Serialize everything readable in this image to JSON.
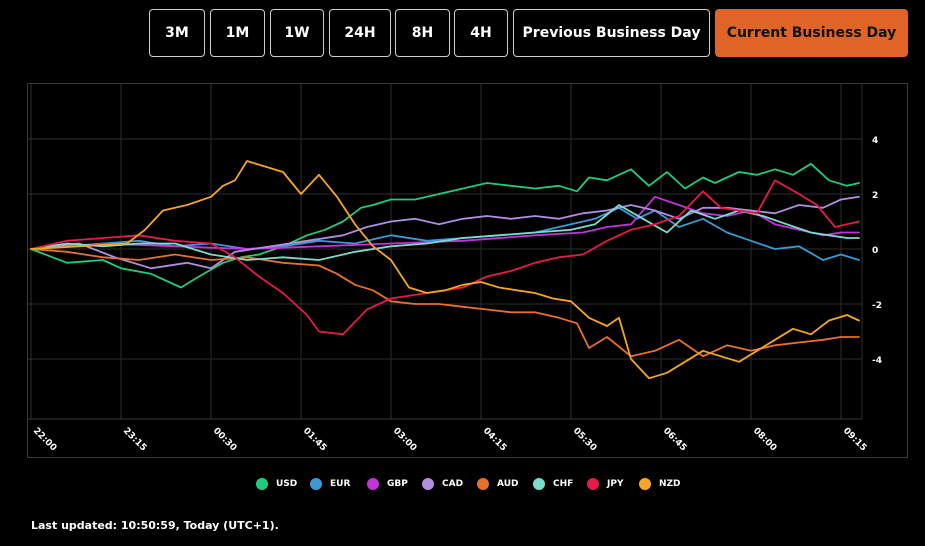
{
  "toolbar": {
    "buttons": [
      {
        "label": "3M",
        "active": false
      },
      {
        "label": "1M",
        "active": false
      },
      {
        "label": "1W",
        "active": false
      },
      {
        "label": "24H",
        "active": false
      },
      {
        "label": "8H",
        "active": false
      },
      {
        "label": "4H",
        "active": false
      },
      {
        "label": "Previous Business Day",
        "active": false
      },
      {
        "label": "Current Business Day",
        "active": true
      }
    ]
  },
  "footer": {
    "text": "Last updated: 10:50:59, Today (UTC+1)."
  },
  "chart_data": {
    "type": "line",
    "title": "",
    "xlabel": "",
    "ylabel": "",
    "ylim": [
      -6,
      6
    ],
    "grid": true,
    "legend": "bottom",
    "yticks": [
      4,
      2,
      0,
      -2,
      -4
    ],
    "x_tick_labels": [
      "22:00",
      "23:15",
      "00:30",
      "01:45",
      "03:00",
      "04:15",
      "05:30",
      "06:45",
      "08:00",
      "09:15"
    ],
    "x_unit": "minutes since 22:00",
    "series": [
      {
        "name": "USD",
        "color": "#1fcc7e",
        "points": [
          [
            0,
            0
          ],
          [
            30,
            -0.5
          ],
          [
            60,
            -0.4
          ],
          [
            75,
            -0.7
          ],
          [
            100,
            -0.9
          ],
          [
            125,
            -1.4
          ],
          [
            140,
            -1.0
          ],
          [
            160,
            -0.5
          ],
          [
            175,
            -0.3
          ],
          [
            190,
            -0.2
          ],
          [
            210,
            0.1
          ],
          [
            230,
            0.5
          ],
          [
            245,
            0.7
          ],
          [
            260,
            1.0
          ],
          [
            275,
            1.5
          ],
          [
            285,
            1.6
          ],
          [
            300,
            1.8
          ],
          [
            320,
            1.8
          ],
          [
            340,
            2.0
          ],
          [
            360,
            2.2
          ],
          [
            380,
            2.4
          ],
          [
            400,
            2.3
          ],
          [
            420,
            2.2
          ],
          [
            440,
            2.3
          ],
          [
            455,
            2.1
          ],
          [
            465,
            2.6
          ],
          [
            480,
            2.5
          ],
          [
            500,
            2.9
          ],
          [
            515,
            2.3
          ],
          [
            530,
            2.8
          ],
          [
            545,
            2.2
          ],
          [
            560,
            2.6
          ],
          [
            570,
            2.4
          ],
          [
            580,
            2.6
          ],
          [
            590,
            2.8
          ],
          [
            605,
            2.7
          ],
          [
            620,
            2.9
          ],
          [
            635,
            2.7
          ],
          [
            650,
            3.1
          ],
          [
            665,
            2.5
          ],
          [
            680,
            2.3
          ],
          [
            690,
            2.4
          ]
        ]
      },
      {
        "name": "EUR",
        "color": "#3b9ad6",
        "points": [
          [
            0,
            0
          ],
          [
            30,
            0.1
          ],
          [
            60,
            0.2
          ],
          [
            90,
            0.3
          ],
          [
            120,
            0.1
          ],
          [
            150,
            0.2
          ],
          [
            180,
            0.0
          ],
          [
            210,
            0.1
          ],
          [
            240,
            0.3
          ],
          [
            270,
            0.2
          ],
          [
            300,
            0.5
          ],
          [
            330,
            0.3
          ],
          [
            360,
            0.4
          ],
          [
            390,
            0.5
          ],
          [
            420,
            0.6
          ],
          [
            450,
            0.9
          ],
          [
            470,
            1.1
          ],
          [
            490,
            1.5
          ],
          [
            505,
            1.1
          ],
          [
            520,
            1.4
          ],
          [
            540,
            0.8
          ],
          [
            560,
            1.1
          ],
          [
            580,
            0.6
          ],
          [
            600,
            0.3
          ],
          [
            620,
            0.0
          ],
          [
            640,
            0.1
          ],
          [
            660,
            -0.4
          ],
          [
            675,
            -0.2
          ],
          [
            690,
            -0.4
          ]
        ]
      },
      {
        "name": "GBP",
        "color": "#c233d9",
        "points": [
          [
            0,
            0
          ],
          [
            60,
            0.2
          ],
          [
            120,
            0.1
          ],
          [
            180,
            0.0
          ],
          [
            240,
            0.1
          ],
          [
            300,
            0.2
          ],
          [
            360,
            0.3
          ],
          [
            420,
            0.5
          ],
          [
            460,
            0.6
          ],
          [
            480,
            0.8
          ],
          [
            500,
            0.9
          ],
          [
            520,
            1.9
          ],
          [
            540,
            1.6
          ],
          [
            560,
            1.3
          ],
          [
            580,
            1.2
          ],
          [
            600,
            1.4
          ],
          [
            620,
            0.9
          ],
          [
            640,
            0.7
          ],
          [
            660,
            0.5
          ],
          [
            675,
            0.6
          ],
          [
            690,
            0.6
          ]
        ]
      },
      {
        "name": "CAD",
        "color": "#b08ee0",
        "points": [
          [
            0,
            0
          ],
          [
            40,
            0.2
          ],
          [
            70,
            -0.3
          ],
          [
            100,
            -0.7
          ],
          [
            130,
            -0.5
          ],
          [
            150,
            -0.7
          ],
          [
            170,
            -0.1
          ],
          [
            200,
            0.1
          ],
          [
            230,
            0.3
          ],
          [
            260,
            0.5
          ],
          [
            280,
            0.8
          ],
          [
            300,
            1.0
          ],
          [
            320,
            1.1
          ],
          [
            340,
            0.9
          ],
          [
            360,
            1.1
          ],
          [
            380,
            1.2
          ],
          [
            400,
            1.1
          ],
          [
            420,
            1.2
          ],
          [
            440,
            1.1
          ],
          [
            460,
            1.3
          ],
          [
            480,
            1.4
          ],
          [
            500,
            1.6
          ],
          [
            520,
            1.4
          ],
          [
            540,
            1.1
          ],
          [
            560,
            1.5
          ],
          [
            580,
            1.5
          ],
          [
            600,
            1.4
          ],
          [
            620,
            1.3
          ],
          [
            640,
            1.6
          ],
          [
            660,
            1.5
          ],
          [
            675,
            1.8
          ],
          [
            690,
            1.9
          ]
        ]
      },
      {
        "name": "AUD",
        "color": "#e8702f",
        "points": [
          [
            0,
            0
          ],
          [
            30,
            -0.1
          ],
          [
            60,
            -0.3
          ],
          [
            90,
            -0.4
          ],
          [
            120,
            -0.2
          ],
          [
            150,
            -0.4
          ],
          [
            180,
            -0.3
          ],
          [
            210,
            -0.5
          ],
          [
            240,
            -0.6
          ],
          [
            255,
            -0.9
          ],
          [
            270,
            -1.3
          ],
          [
            285,
            -1.5
          ],
          [
            300,
            -1.9
          ],
          [
            320,
            -2.0
          ],
          [
            340,
            -2.0
          ],
          [
            360,
            -2.1
          ],
          [
            380,
            -2.2
          ],
          [
            400,
            -2.3
          ],
          [
            420,
            -2.3
          ],
          [
            440,
            -2.5
          ],
          [
            455,
            -2.7
          ],
          [
            465,
            -3.6
          ],
          [
            480,
            -3.2
          ],
          [
            500,
            -3.9
          ],
          [
            520,
            -3.7
          ],
          [
            540,
            -3.3
          ],
          [
            560,
            -3.9
          ],
          [
            580,
            -3.5
          ],
          [
            600,
            -3.7
          ],
          [
            620,
            -3.5
          ],
          [
            640,
            -3.4
          ],
          [
            660,
            -3.3
          ],
          [
            675,
            -3.2
          ],
          [
            690,
            -3.2
          ]
        ]
      },
      {
        "name": "CHF",
        "color": "#7cdccc",
        "points": [
          [
            0,
            0
          ],
          [
            30,
            0.2
          ],
          [
            60,
            0.1
          ],
          [
            90,
            0.2
          ],
          [
            120,
            0.2
          ],
          [
            150,
            -0.2
          ],
          [
            180,
            -0.4
          ],
          [
            210,
            -0.3
          ],
          [
            240,
            -0.4
          ],
          [
            270,
            -0.1
          ],
          [
            300,
            0.1
          ],
          [
            330,
            0.2
          ],
          [
            360,
            0.4
          ],
          [
            390,
            0.5
          ],
          [
            420,
            0.6
          ],
          [
            450,
            0.7
          ],
          [
            470,
            0.9
          ],
          [
            490,
            1.6
          ],
          [
            510,
            1.1
          ],
          [
            530,
            0.6
          ],
          [
            550,
            1.4
          ],
          [
            570,
            1.1
          ],
          [
            590,
            1.4
          ],
          [
            610,
            1.2
          ],
          [
            630,
            0.9
          ],
          [
            650,
            0.6
          ],
          [
            665,
            0.5
          ],
          [
            680,
            0.4
          ],
          [
            690,
            0.4
          ]
        ]
      },
      {
        "name": "JPY",
        "color": "#e8194b",
        "points": [
          [
            0,
            0
          ],
          [
            30,
            0.3
          ],
          [
            60,
            0.4
          ],
          [
            90,
            0.5
          ],
          [
            120,
            0.3
          ],
          [
            150,
            0.2
          ],
          [
            170,
            -0.3
          ],
          [
            190,
            -1.0
          ],
          [
            210,
            -1.6
          ],
          [
            230,
            -2.4
          ],
          [
            240,
            -3.0
          ],
          [
            260,
            -3.1
          ],
          [
            280,
            -2.2
          ],
          [
            300,
            -1.8
          ],
          [
            330,
            -1.6
          ],
          [
            360,
            -1.4
          ],
          [
            380,
            -1.0
          ],
          [
            400,
            -0.8
          ],
          [
            420,
            -0.5
          ],
          [
            440,
            -0.3
          ],
          [
            460,
            -0.2
          ],
          [
            480,
            0.3
          ],
          [
            500,
            0.7
          ],
          [
            520,
            0.9
          ],
          [
            540,
            1.2
          ],
          [
            560,
            2.1
          ],
          [
            575,
            1.5
          ],
          [
            590,
            1.4
          ],
          [
            605,
            1.3
          ],
          [
            620,
            2.5
          ],
          [
            640,
            2.0
          ],
          [
            655,
            1.6
          ],
          [
            670,
            0.8
          ],
          [
            690,
            1.0
          ]
        ]
      },
      {
        "name": "NZD",
        "color": "#f5a623",
        "points": [
          [
            0,
            0
          ],
          [
            40,
            0.1
          ],
          [
            80,
            0.2
          ],
          [
            95,
            0.7
          ],
          [
            110,
            1.4
          ],
          [
            130,
            1.6
          ],
          [
            150,
            1.9
          ],
          [
            160,
            2.3
          ],
          [
            170,
            2.5
          ],
          [
            180,
            3.2
          ],
          [
            195,
            3.0
          ],
          [
            210,
            2.8
          ],
          [
            225,
            2.0
          ],
          [
            240,
            2.7
          ],
          [
            255,
            1.9
          ],
          [
            270,
            0.9
          ],
          [
            285,
            0.1
          ],
          [
            300,
            -0.4
          ],
          [
            315,
            -1.4
          ],
          [
            330,
            -1.6
          ],
          [
            345,
            -1.5
          ],
          [
            360,
            -1.3
          ],
          [
            375,
            -1.2
          ],
          [
            390,
            -1.4
          ],
          [
            405,
            -1.5
          ],
          [
            420,
            -1.6
          ],
          [
            435,
            -1.8
          ],
          [
            450,
            -1.9
          ],
          [
            465,
            -2.5
          ],
          [
            480,
            -2.8
          ],
          [
            490,
            -2.5
          ],
          [
            500,
            -4.0
          ],
          [
            515,
            -4.7
          ],
          [
            530,
            -4.5
          ],
          [
            545,
            -4.1
          ],
          [
            560,
            -3.7
          ],
          [
            575,
            -3.9
          ],
          [
            590,
            -4.1
          ],
          [
            605,
            -3.7
          ],
          [
            620,
            -3.3
          ],
          [
            635,
            -2.9
          ],
          [
            650,
            -3.1
          ],
          [
            665,
            -2.6
          ],
          [
            680,
            -2.4
          ],
          [
            690,
            -2.6
          ]
        ]
      }
    ]
  }
}
